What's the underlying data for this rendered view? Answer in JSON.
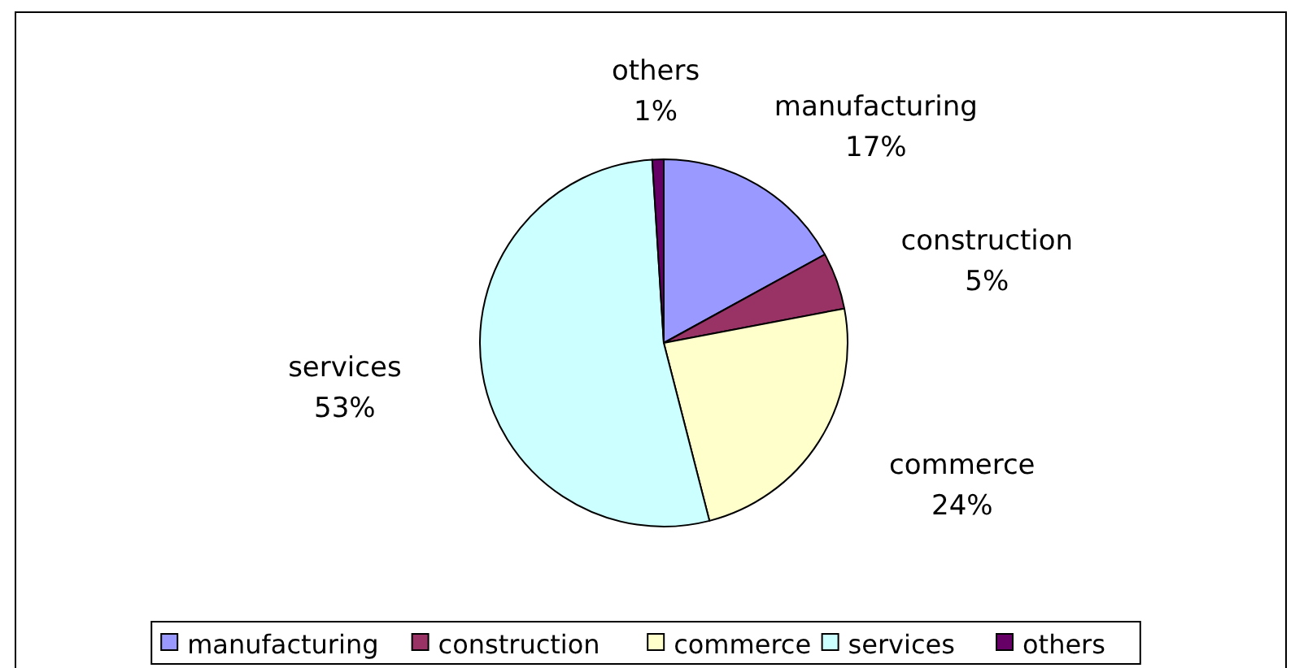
{
  "chart_data": {
    "type": "pie",
    "categories": [
      "manufacturing",
      "construction",
      "commerce",
      "services",
      "others"
    ],
    "values": [
      17,
      5,
      24,
      53,
      1
    ],
    "value_labels": [
      "17%",
      "5%",
      "24%",
      "53%",
      "1%"
    ],
    "colors": [
      "#9999ff",
      "#993366",
      "#ffffcc",
      "#ccffff",
      "#660066"
    ],
    "legend": "bottom"
  }
}
